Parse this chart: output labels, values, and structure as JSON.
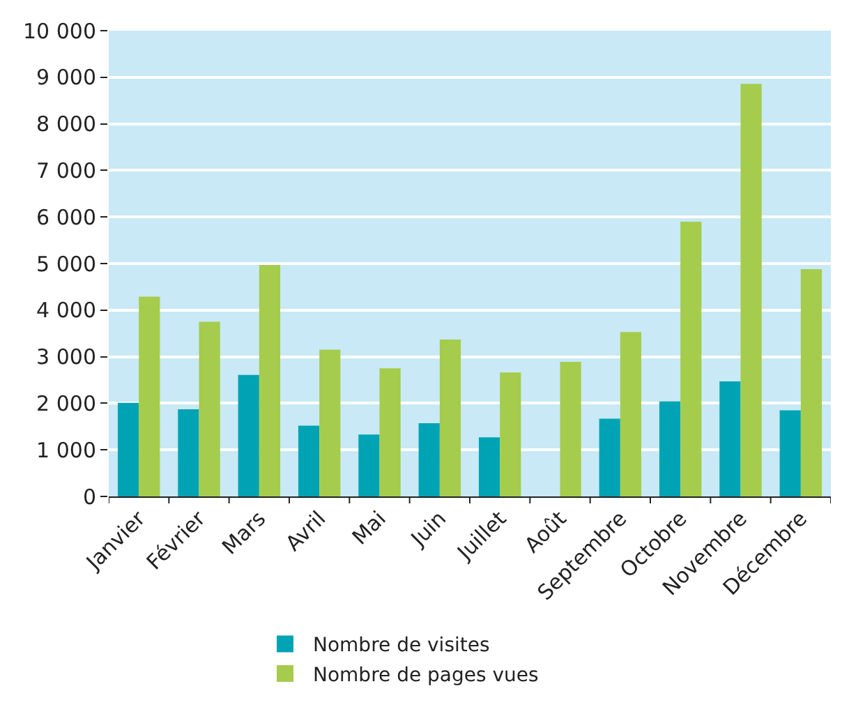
{
  "chart_data": {
    "type": "bar",
    "categories": [
      "Janvier",
      "Février",
      "Mars",
      "Avril",
      "Mai",
      "Juin",
      "Juillet",
      "Août",
      "Septembre",
      "Octobre",
      "Novembre",
      "Décembre"
    ],
    "series": [
      {
        "name": "Nombre de visites",
        "color": "#00a3b4",
        "values": [
          2010,
          1870,
          2610,
          1520,
          1330,
          1570,
          1270,
          null,
          1670,
          2040,
          2470,
          1850
        ]
      },
      {
        "name": "Nombre de pages vues",
        "color": "#a5cc4c",
        "values": [
          4290,
          3750,
          4970,
          3150,
          2750,
          3370,
          2660,
          2890,
          3530,
          5900,
          8860,
          4880
        ]
      }
    ],
    "ylim": [
      0,
      10000
    ],
    "yticks": [
      {
        "value": 0,
        "label": "0"
      },
      {
        "value": 1000,
        "label": "1 000"
      },
      {
        "value": 2000,
        "label": "2 000"
      },
      {
        "value": 3000,
        "label": "3 000"
      },
      {
        "value": 4000,
        "label": "4 000"
      },
      {
        "value": 5000,
        "label": "5 000"
      },
      {
        "value": 6000,
        "label": "6 000"
      },
      {
        "value": 7000,
        "label": "7 000"
      },
      {
        "value": 8000,
        "label": "8 000"
      },
      {
        "value": 9000,
        "label": "9 000"
      },
      {
        "value": 10000,
        "label": "10 000"
      }
    ],
    "grid": "y",
    "legend": "bottom"
  }
}
